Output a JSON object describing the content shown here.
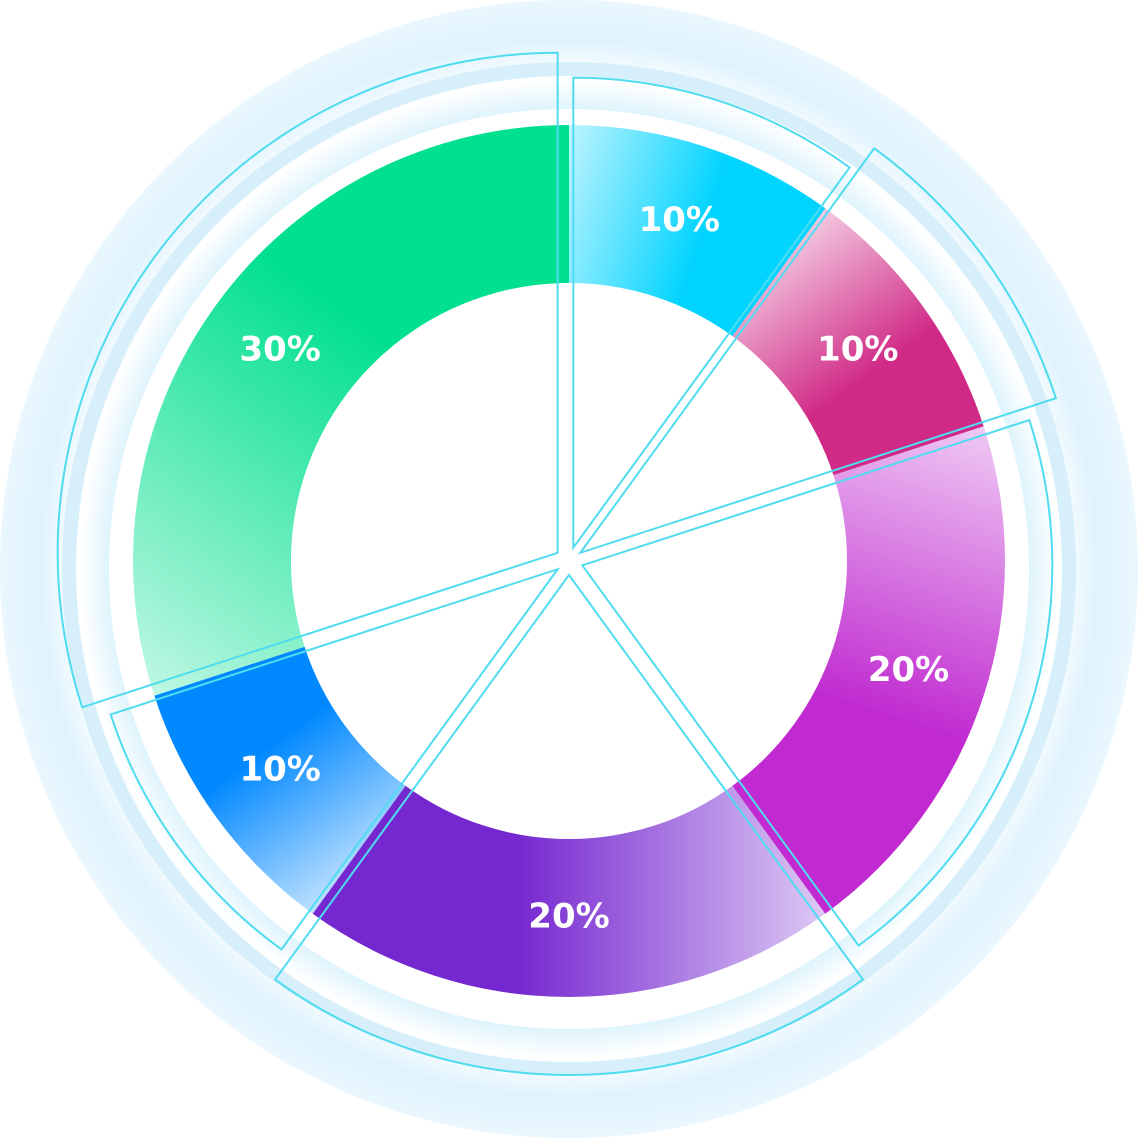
{
  "chart_data": {
    "type": "pie",
    "values": [
      10,
      10,
      20,
      20,
      10,
      30
    ],
    "value_labels": [
      "10%",
      "10%",
      "20%",
      "20%",
      "10%",
      "30%"
    ],
    "colors": [
      "#00d4ff",
      "#d02a86",
      "#c02ad0",
      "#7628d0",
      "#0088ff",
      "#00e08e"
    ]
  }
}
